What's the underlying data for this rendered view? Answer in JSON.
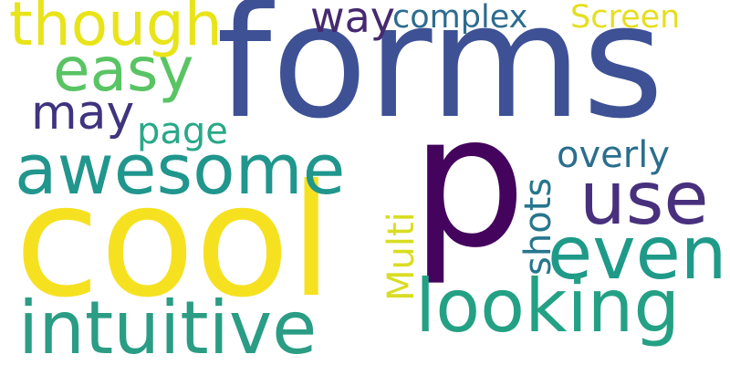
{
  "words": {
    "forms": {
      "text": "forms",
      "color": "#3e5195"
    },
    "p": {
      "text": "p",
      "color": "#44035c"
    },
    "cool": {
      "text": "cool",
      "color": "#f6e120"
    },
    "awesome": {
      "text": "awesome",
      "color": "#20968d"
    },
    "though": {
      "text": "though",
      "color": "#e8e419"
    },
    "easy": {
      "text": "easy",
      "color": "#59c463"
    },
    "may": {
      "text": "may",
      "color": "#3f347f"
    },
    "page": {
      "text": "page",
      "color": "#29a888"
    },
    "way": {
      "text": "way",
      "color": "#46296e"
    },
    "complex": {
      "text": "complex",
      "color": "#2d6b8f"
    },
    "screen": {
      "text": "Screen",
      "color": "#e5df1e"
    },
    "overly": {
      "text": "overly",
      "color": "#2a6e8e"
    },
    "use": {
      "text": "use",
      "color": "#48307d"
    },
    "even": {
      "text": "even",
      "color": "#1f9a89"
    },
    "looking": {
      "text": "looking",
      "color": "#24a184"
    },
    "intuitive": {
      "text": "intuitive",
      "color": "#2a9d84"
    },
    "multi": {
      "text": "Multi",
      "color": "#d9dd22"
    },
    "shots": {
      "text": "shots",
      "color": "#26768d"
    }
  }
}
